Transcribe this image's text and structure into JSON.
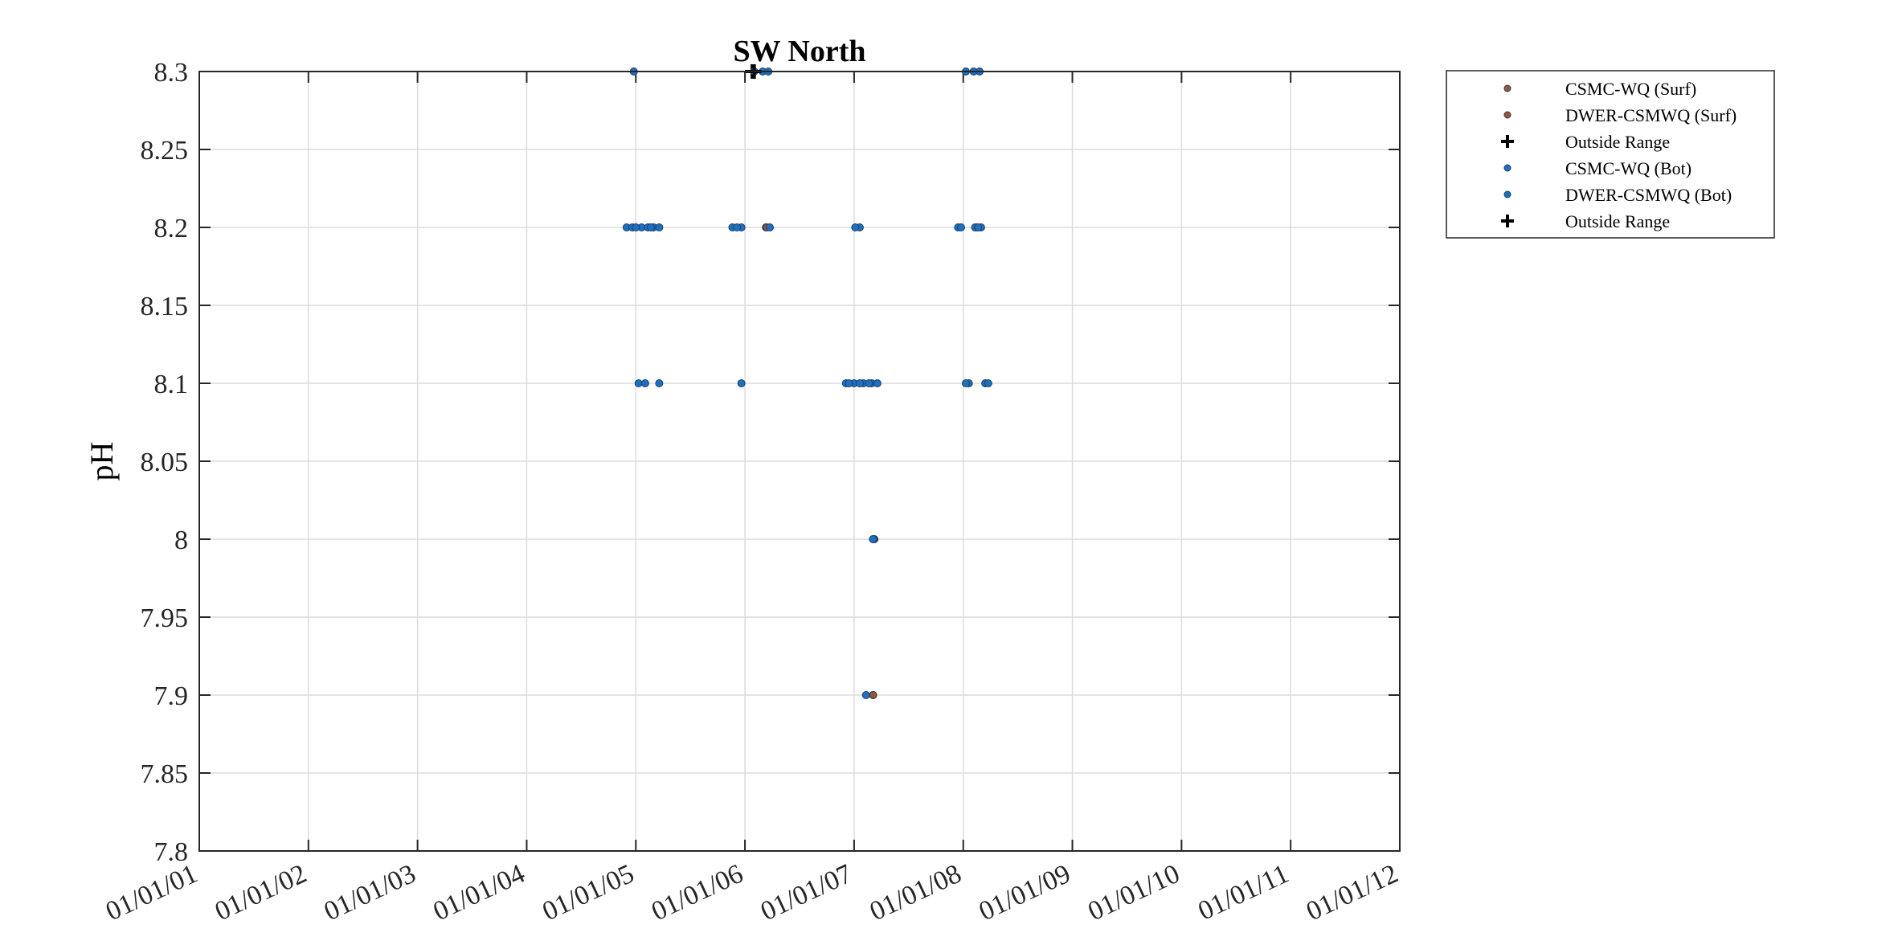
{
  "chart_data": {
    "type": "scatter",
    "title": "SW North",
    "xlabel": "",
    "ylabel": "pH",
    "ylim": [
      7.8,
      8.3
    ],
    "y_ticks": [
      7.8,
      7.85,
      7.9,
      7.95,
      8,
      8.05,
      8.1,
      8.15,
      8.2,
      8.25,
      8.3
    ],
    "y_tick_labels": [
      "7.8",
      "7.85",
      "7.9",
      "7.95",
      "8",
      "8.05",
      "8.1",
      "8.15",
      "8.2",
      "8.25",
      "8.3"
    ],
    "xlim": [
      "2001-01-01",
      "2012-01-01"
    ],
    "x_tick_labels": [
      "01/01/01",
      "01/01/02",
      "01/01/03",
      "01/01/04",
      "01/01/05",
      "01/01/06",
      "01/01/07",
      "01/01/08",
      "01/01/09",
      "01/01/10",
      "01/01/11",
      "01/01/12"
    ],
    "grid": true,
    "legend_position": "outside-top-right",
    "series": [
      {
        "name": "CSMC-WQ (Surf)",
        "marker": "dot",
        "color": "#a0522d",
        "points": [
          {
            "x": "2006-03-12",
            "y": 8.2
          },
          {
            "x": "2007-03-10",
            "y": 8.0
          },
          {
            "x": "2007-03-05",
            "y": 7.9
          },
          {
            "x": "2008-02-15",
            "y": 8.2
          }
        ]
      },
      {
        "name": "DWER-CSMWQ (Surf)",
        "marker": "dot",
        "color": "#a0522d",
        "points": [
          {
            "x": "2006-03-15",
            "y": 8.2
          },
          {
            "x": "2007-03-08",
            "y": 8.0
          },
          {
            "x": "2007-03-06",
            "y": 7.9
          }
        ]
      },
      {
        "name": "Outside Range",
        "marker": "plus",
        "color": "#000000",
        "points": [
          {
            "x": "2006-01-25",
            "y": 8.3
          }
        ]
      },
      {
        "name": "CSMC-WQ (Bot)",
        "marker": "dot",
        "color": "#1f6fbf",
        "points": [
          {
            "x": "2004-12-25",
            "y": 8.3
          },
          {
            "x": "2006-02-01",
            "y": 8.3
          },
          {
            "x": "2006-03-01",
            "y": 8.3
          },
          {
            "x": "2006-03-20",
            "y": 8.3
          },
          {
            "x": "2008-01-10",
            "y": 8.3
          },
          {
            "x": "2008-02-05",
            "y": 8.3
          },
          {
            "x": "2008-02-25",
            "y": 8.3
          },
          {
            "x": "2004-12-01",
            "y": 8.2
          },
          {
            "x": "2004-12-20",
            "y": 8.2
          },
          {
            "x": "2005-01-20",
            "y": 8.2
          },
          {
            "x": "2005-02-10",
            "y": 8.2
          },
          {
            "x": "2005-03-01",
            "y": 8.2
          },
          {
            "x": "2005-03-20",
            "y": 8.2
          },
          {
            "x": "2005-11-20",
            "y": 8.2
          },
          {
            "x": "2005-12-20",
            "y": 8.2
          },
          {
            "x": "2006-03-25",
            "y": 8.2
          },
          {
            "x": "2007-01-20",
            "y": 8.2
          },
          {
            "x": "2007-12-15",
            "y": 8.2
          },
          {
            "x": "2008-02-10",
            "y": 8.2
          },
          {
            "x": "2008-03-01",
            "y": 8.2
          },
          {
            "x": "2005-01-10",
            "y": 8.1
          },
          {
            "x": "2005-02-01",
            "y": 8.1
          },
          {
            "x": "2005-03-20",
            "y": 8.1
          },
          {
            "x": "2005-12-20",
            "y": 8.1
          },
          {
            "x": "2006-12-05",
            "y": 8.1
          },
          {
            "x": "2007-01-01",
            "y": 8.1
          },
          {
            "x": "2007-02-01",
            "y": 8.1
          },
          {
            "x": "2007-03-01",
            "y": 8.1
          },
          {
            "x": "2007-03-20",
            "y": 8.1
          },
          {
            "x": "2008-01-20",
            "y": 8.1
          },
          {
            "x": "2008-03-15",
            "y": 8.1
          },
          {
            "x": "2007-03-05",
            "y": 8.0
          },
          {
            "x": "2007-02-10",
            "y": 7.9
          }
        ]
      },
      {
        "name": "DWER-CSMWQ (Bot)",
        "marker": "dot",
        "color": "#1f6fbf",
        "points": [
          {
            "x": "2005-01-01",
            "y": 8.2
          },
          {
            "x": "2005-02-20",
            "y": 8.2
          },
          {
            "x": "2005-12-05",
            "y": 8.2
          },
          {
            "x": "2007-01-05",
            "y": 8.2
          },
          {
            "x": "2007-12-25",
            "y": 8.2
          },
          {
            "x": "2008-02-20",
            "y": 8.2
          },
          {
            "x": "2006-12-15",
            "y": 8.1
          },
          {
            "x": "2007-01-20",
            "y": 8.1
          },
          {
            "x": "2007-02-20",
            "y": 8.1
          },
          {
            "x": "2008-01-10",
            "y": 8.1
          },
          {
            "x": "2008-03-25",
            "y": 8.1
          }
        ]
      },
      {
        "name": "Outside Range",
        "marker": "plus",
        "color": "#000000",
        "points": [
          {
            "x": "2006-02-01",
            "y": 8.3
          }
        ]
      }
    ]
  }
}
